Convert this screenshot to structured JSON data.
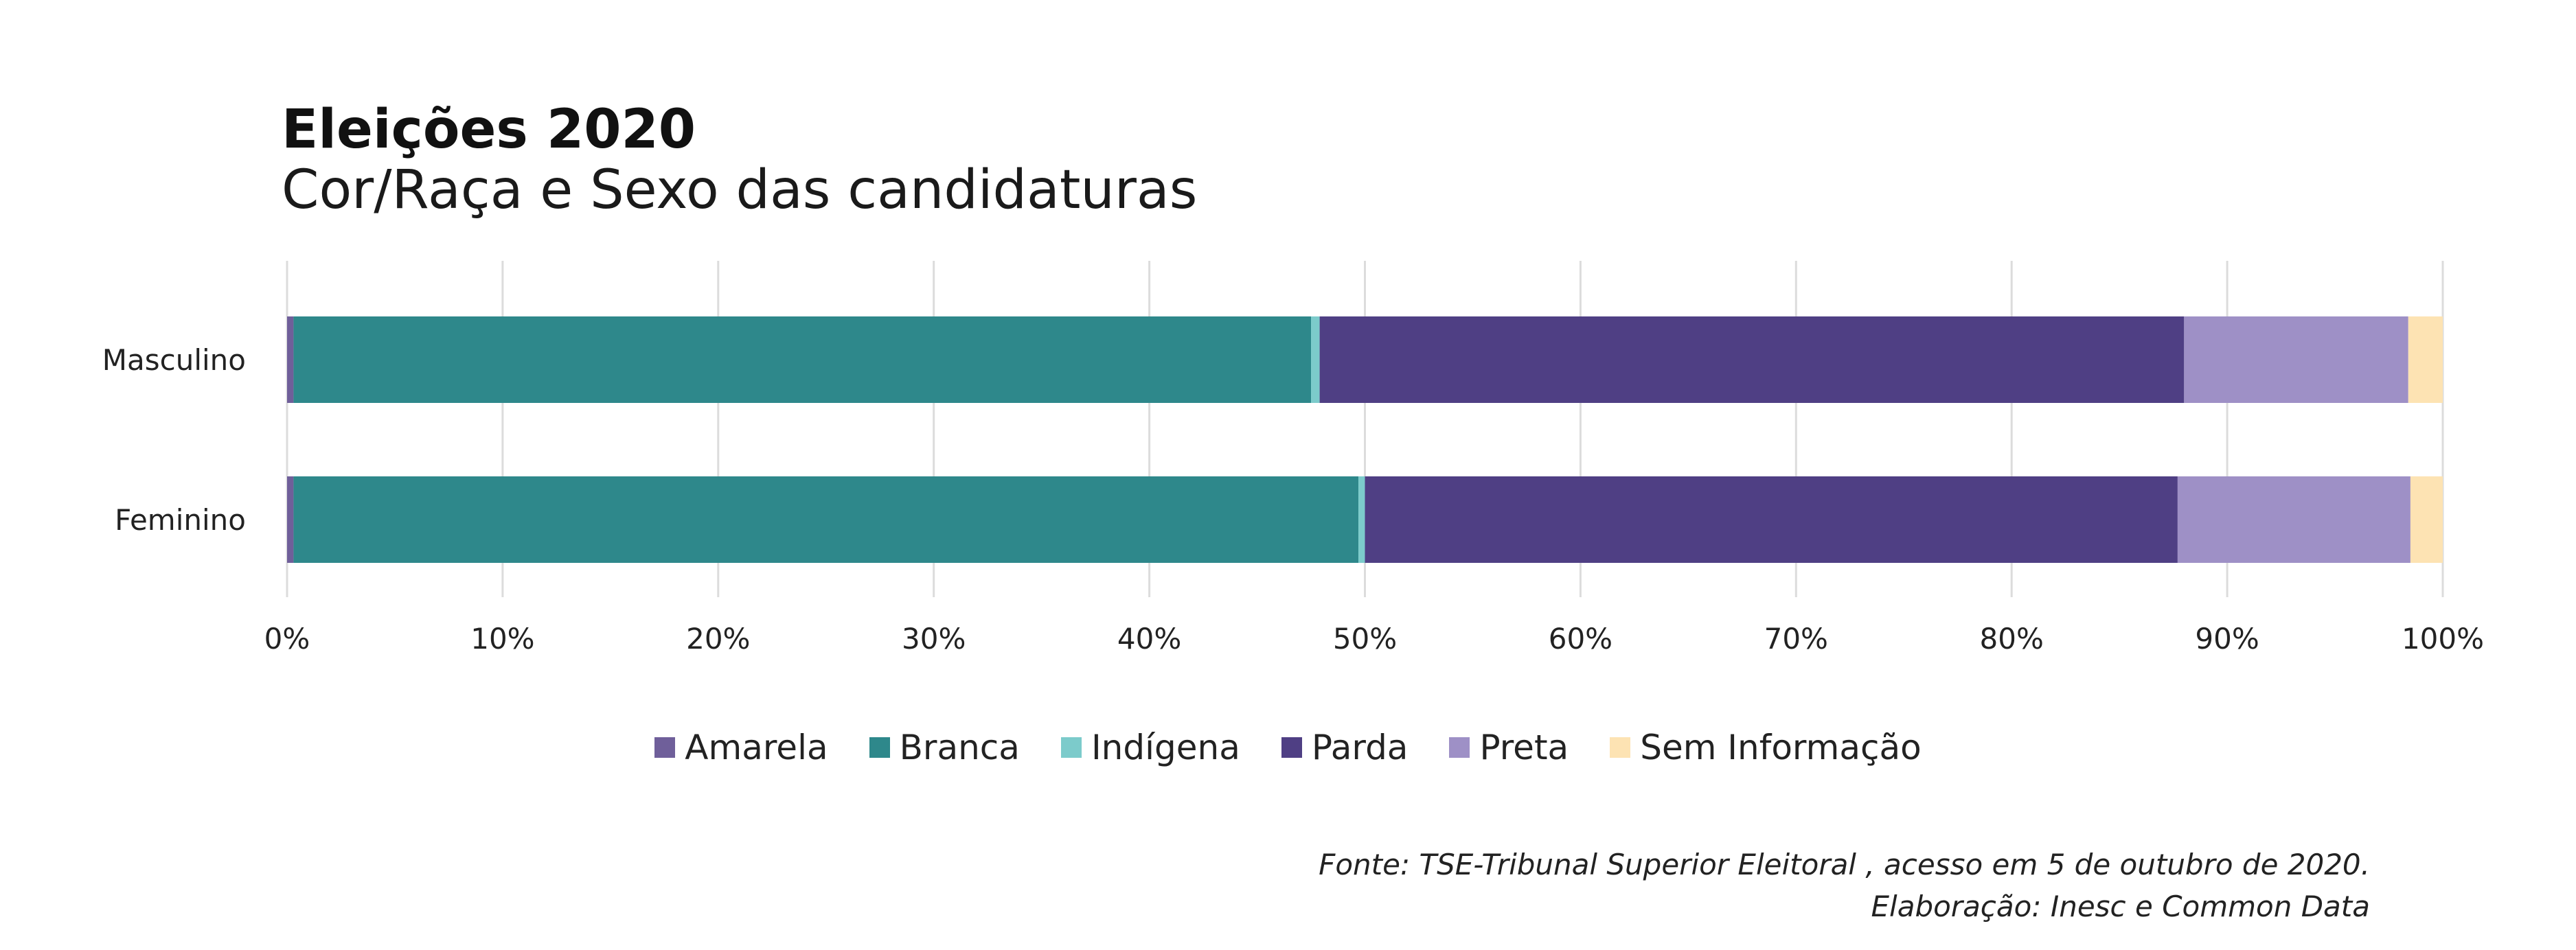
{
  "chart_data": {
    "type": "bar",
    "orientation": "horizontal",
    "stacked": true,
    "title": "Eleições 2020",
    "subtitle": "Cor/Raça e Sexo das candidaturas",
    "categories": [
      "Masculino",
      "Feminino"
    ],
    "series": [
      {
        "name": "Amarela",
        "color": "#6f5f9a",
        "values": [
          0.3,
          0.3
        ]
      },
      {
        "name": "Branca",
        "color": "#2e888b",
        "values": [
          47.2,
          49.4
        ]
      },
      {
        "name": "Indígena",
        "color": "#7ccbcb",
        "values": [
          0.4,
          0.3
        ]
      },
      {
        "name": "Parda",
        "color": "#4f3f84",
        "values": [
          40.1,
          37.7
        ]
      },
      {
        "name": "Preta",
        "color": "#9e90c6",
        "values": [
          10.4,
          10.8
        ]
      },
      {
        "name": "Sem Informação",
        "color": "#fde3b3",
        "values": [
          1.6,
          1.5
        ]
      }
    ],
    "xlim": [
      0,
      100
    ],
    "xticks": [
      "0%",
      "10%",
      "20%",
      "30%",
      "40%",
      "50%",
      "60%",
      "70%",
      "80%",
      "90%",
      "100%"
    ],
    "grid": true,
    "legend_position": "bottom"
  },
  "source": {
    "line1": "Fonte: TSE-Tribunal Superior Eleitoral , acesso em 5 de outubro de 2020.",
    "line2": "Elaboração: Inesc e Common Data"
  }
}
